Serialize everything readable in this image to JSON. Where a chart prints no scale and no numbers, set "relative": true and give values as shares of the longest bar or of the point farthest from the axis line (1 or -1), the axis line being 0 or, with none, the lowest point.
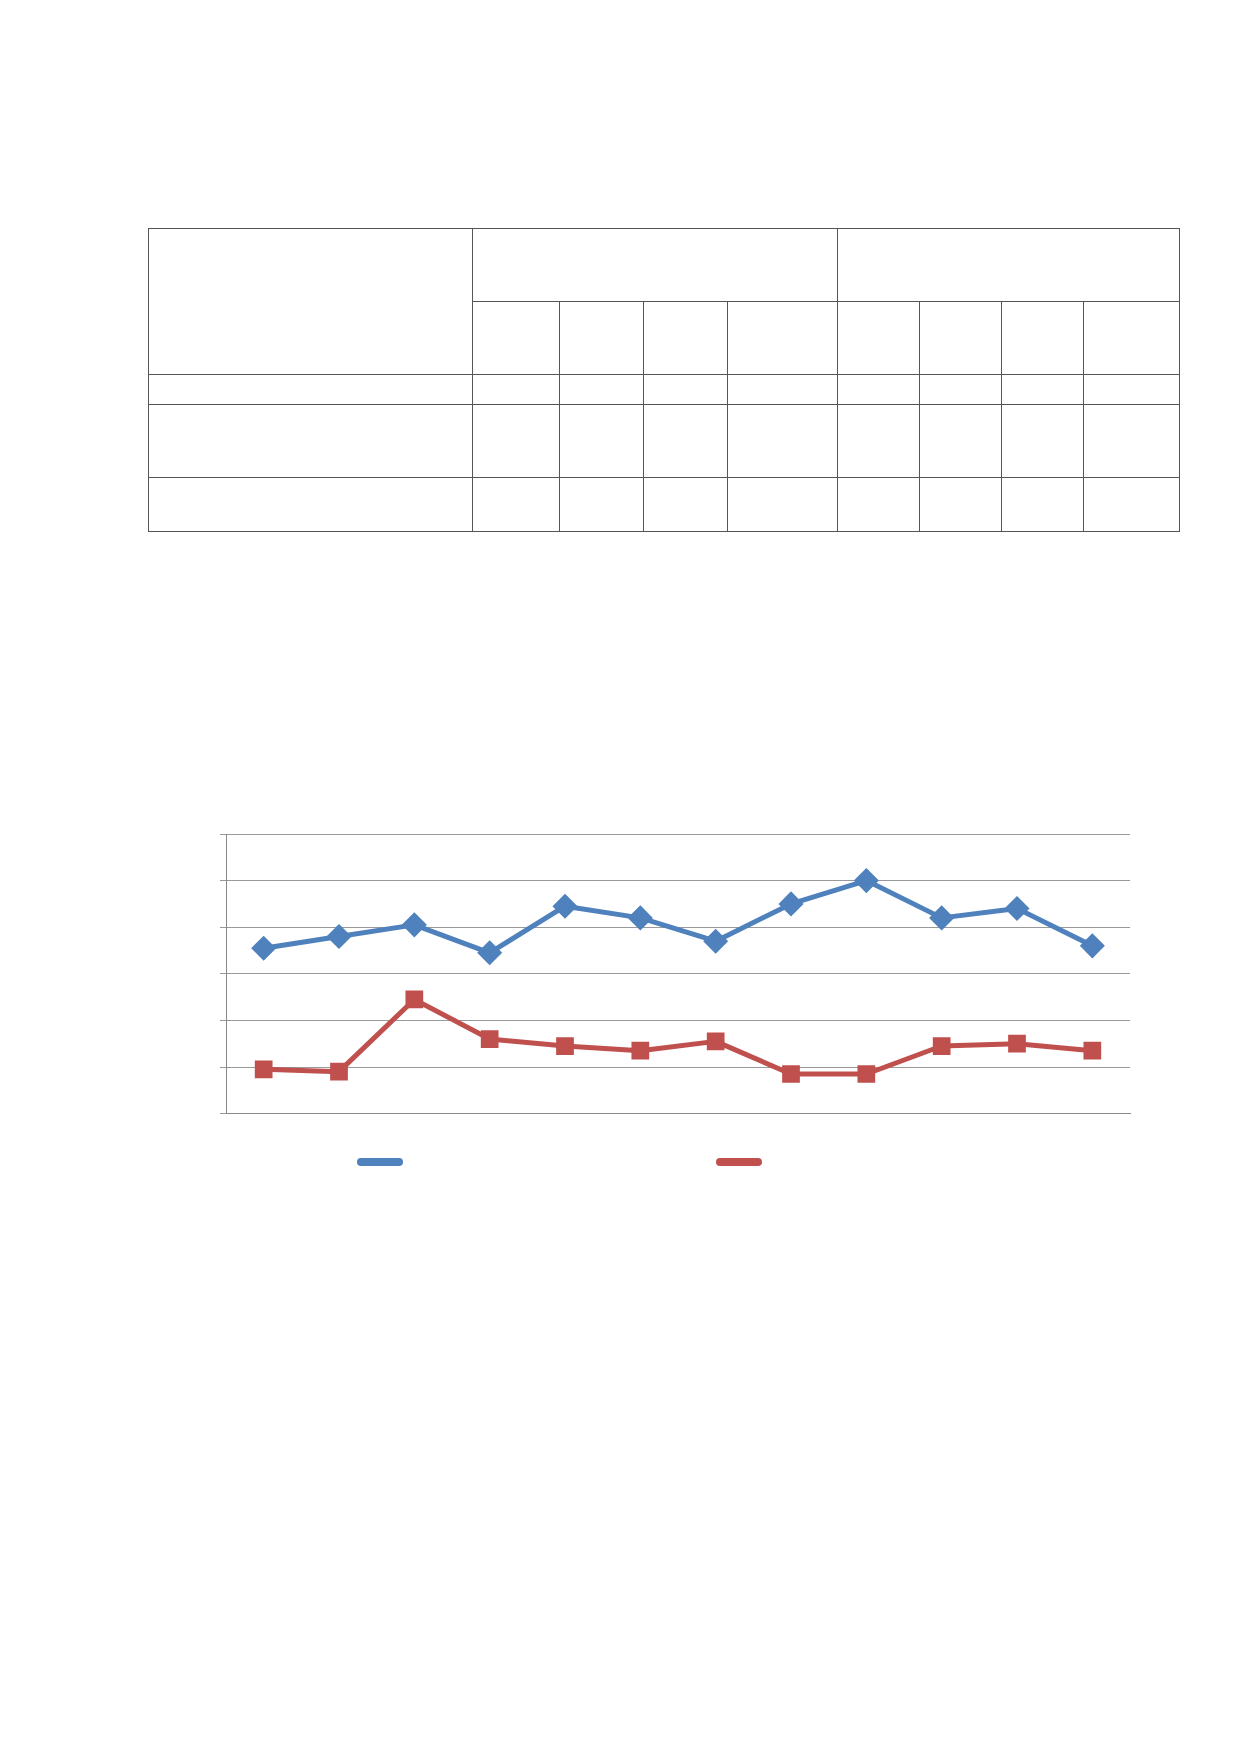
{
  "chart_data": {
    "type": "line",
    "relative": true,
    "grid": "y",
    "categories": [
      null,
      null,
      null,
      null,
      null,
      null,
      null,
      null,
      null,
      null,
      null,
      null
    ],
    "series": [
      {
        "color": "#4f81bd",
        "marker": "diamond",
        "values": [
          0.71,
          0.76,
          0.81,
          0.69,
          0.89,
          0.84,
          0.74,
          0.9,
          1,
          0.84,
          0.88,
          0.72
        ]
      },
      {
        "color": "#c0504d",
        "marker": "square",
        "values": [
          0.19,
          0.18,
          0.49,
          0.32,
          0.29,
          0.27,
          0.31,
          0.17,
          0.17,
          0.29,
          0.3,
          0.27
        ]
      }
    ]
  }
}
